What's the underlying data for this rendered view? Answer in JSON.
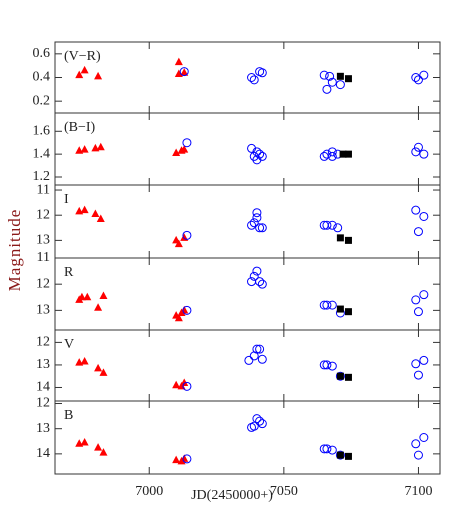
{
  "chart_data": [
    {
      "type": "scatter",
      "label": "(V−R)",
      "xlim": [
        6965,
        7108
      ],
      "ylim": [
        0.1,
        0.7
      ],
      "yticks": [
        0.2,
        0.4,
        0.6
      ],
      "series": [
        {
          "color": "#ff0000",
          "marker": "triangle",
          "x": [
            6974,
            6976,
            6981,
            7011,
            7011,
            7013
          ],
          "values": [
            0.42,
            0.46,
            0.41,
            0.53,
            0.43,
            0.44
          ]
        },
        {
          "color": "#0000ff",
          "marker": "circle",
          "x": [
            7013,
            7038,
            7039,
            7041,
            7042,
            7065,
            7066,
            7067,
            7068,
            7071,
            7099,
            7100,
            7102
          ],
          "values": [
            0.45,
            0.4,
            0.38,
            0.45,
            0.44,
            0.42,
            0.3,
            0.41,
            0.36,
            0.34,
            0.4,
            0.38,
            0.42
          ]
        },
        {
          "color": "#000000",
          "marker": "square",
          "x": [
            7071,
            7074
          ],
          "values": [
            0.41,
            0.39
          ]
        }
      ]
    },
    {
      "type": "scatter",
      "label": "(B−I)",
      "xlim": [
        6965,
        7108
      ],
      "ylim": [
        1.13,
        1.76
      ],
      "yticks": [
        1.2,
        1.4,
        1.6
      ],
      "series": [
        {
          "color": "#ff0000",
          "marker": "triangle",
          "x": [
            6974,
            6976,
            6980,
            6982,
            7010,
            7012,
            7013
          ],
          "values": [
            1.43,
            1.44,
            1.45,
            1.46,
            1.41,
            1.43,
            1.44
          ]
        },
        {
          "color": "#0000ff",
          "marker": "circle",
          "x": [
            7014,
            7038,
            7039,
            7040,
            7040,
            7041,
            7042,
            7065,
            7066,
            7068,
            7068,
            7070,
            7099,
            7100,
            7102
          ],
          "values": [
            1.5,
            1.45,
            1.38,
            1.35,
            1.42,
            1.4,
            1.38,
            1.38,
            1.4,
            1.42,
            1.38,
            1.4,
            1.42,
            1.46,
            1.4
          ]
        },
        {
          "color": "#000000",
          "marker": "square",
          "x": [
            7072,
            7074
          ],
          "values": [
            1.4,
            1.4
          ]
        }
      ]
    },
    {
      "type": "scatter",
      "label": "I",
      "xlim": [
        6965,
        7108
      ],
      "ylim": [
        13.7,
        10.8
      ],
      "yticks": [
        11,
        12,
        13
      ],
      "series": [
        {
          "color": "#ff0000",
          "marker": "triangle",
          "x": [
            6974,
            6976,
            6980,
            6982,
            7010,
            7011,
            7013
          ],
          "values": [
            11.85,
            11.8,
            11.95,
            12.15,
            13.0,
            13.15,
            12.9
          ]
        },
        {
          "color": "#0000ff",
          "marker": "circle",
          "x": [
            7014,
            7038,
            7039,
            7040,
            7040,
            7041,
            7042,
            7065,
            7066,
            7068,
            7070,
            7099,
            7100,
            7102
          ],
          "values": [
            12.8,
            12.4,
            12.3,
            11.9,
            12.1,
            12.5,
            12.5,
            12.4,
            12.4,
            12.4,
            12.5,
            11.8,
            12.65,
            12.05
          ]
        },
        {
          "color": "#000000",
          "marker": "square",
          "x": [
            7071,
            7074
          ],
          "values": [
            12.9,
            13.0
          ]
        }
      ]
    },
    {
      "type": "scatter",
      "label": "R",
      "ylabel": "Magnitude",
      "xlim": [
        6965,
        7108
      ],
      "ylim": [
        13.75,
        11.0
      ],
      "yticks": [
        11,
        12,
        13
      ],
      "series": [
        {
          "color": "#ff0000",
          "marker": "triangle",
          "x": [
            6974,
            6975,
            6977,
            6981,
            6983,
            7010,
            7011,
            7012,
            7013
          ],
          "values": [
            12.6,
            12.5,
            12.5,
            12.9,
            12.45,
            13.2,
            13.3,
            13.1,
            13.0
          ]
        },
        {
          "color": "#0000ff",
          "marker": "circle",
          "x": [
            7014,
            7038,
            7039,
            7040,
            7041,
            7042,
            7065,
            7066,
            7068,
            7071,
            7099,
            7100,
            7102
          ],
          "values": [
            13.0,
            11.9,
            11.7,
            11.5,
            11.9,
            12.0,
            12.8,
            12.8,
            12.8,
            13.1,
            12.6,
            13.05,
            12.4
          ]
        },
        {
          "color": "#000000",
          "marker": "square",
          "x": [
            7071,
            7074
          ],
          "values": [
            12.95,
            13.05
          ]
        }
      ]
    },
    {
      "type": "scatter",
      "label": "V",
      "xlim": [
        6965,
        7108
      ],
      "ylim": [
        14.6,
        11.45
      ],
      "yticks": [
        12,
        13,
        14
      ],
      "series": [
        {
          "color": "#ff0000",
          "marker": "triangle",
          "x": [
            6974,
            6976,
            6981,
            6983,
            7010,
            7012,
            7013
          ],
          "values": [
            12.9,
            12.85,
            13.15,
            13.35,
            13.9,
            13.95,
            13.8
          ]
        },
        {
          "color": "#0000ff",
          "marker": "circle",
          "x": [
            7014,
            7037,
            7039,
            7040,
            7041,
            7042,
            7065,
            7066,
            7068,
            7071,
            7099,
            7100,
            7102
          ],
          "values": [
            13.95,
            12.8,
            12.6,
            12.3,
            12.3,
            12.75,
            13.0,
            13.0,
            13.05,
            13.5,
            12.95,
            13.45,
            12.8
          ]
        },
        {
          "color": "#000000",
          "marker": "square",
          "x": [
            7071,
            7074
          ],
          "values": [
            13.5,
            13.55
          ]
        }
      ]
    },
    {
      "type": "scatter",
      "label": "B",
      "xlabel": "JD(2450000+)",
      "xlim": [
        6965,
        7108
      ],
      "xticks": [
        7000,
        7050,
        7100
      ],
      "ylim": [
        14.8,
        11.9
      ],
      "yticks": [
        12,
        13,
        14
      ],
      "series": [
        {
          "color": "#ff0000",
          "marker": "triangle",
          "x": [
            6974,
            6976,
            6981,
            6983,
            7010,
            7012,
            7013
          ],
          "values": [
            13.6,
            13.55,
            13.75,
            13.95,
            14.25,
            14.3,
            14.2
          ]
        },
        {
          "color": "#0000ff",
          "marker": "circle",
          "x": [
            7014,
            7038,
            7039,
            7040,
            7041,
            7042,
            7065,
            7066,
            7068,
            7071,
            7099,
            7100,
            7102
          ],
          "values": [
            14.2,
            12.95,
            12.9,
            12.6,
            12.7,
            12.8,
            13.8,
            13.8,
            13.85,
            14.05,
            13.6,
            14.05,
            13.35
          ]
        },
        {
          "color": "#000000",
          "marker": "square",
          "x": [
            7071,
            7074
          ],
          "values": [
            14.05,
            14.1
          ]
        }
      ]
    }
  ]
}
